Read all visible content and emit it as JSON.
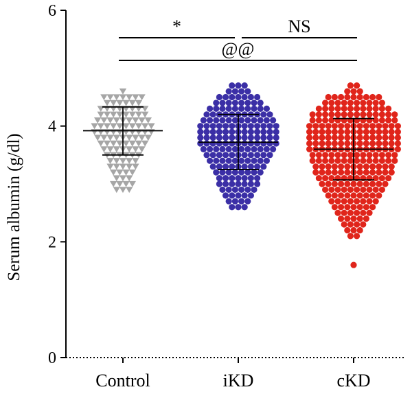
{
  "chart_data": {
    "type": "scatter",
    "ylabel": "Serum albumin (g/dl)",
    "xlabel": "",
    "title": "",
    "ylim": [
      0,
      6
    ],
    "yticks": [
      0,
      2,
      4,
      6
    ],
    "categories": [
      "Control",
      "iKD",
      "cKD"
    ],
    "groups": [
      {
        "name": "Control",
        "marker": "triangle-down",
        "color": "#a6a6a6",
        "mean": 3.92,
        "sd_low": 3.5,
        "sd_high": 4.33,
        "rows": [
          {
            "value": 4.6,
            "count": 1
          },
          {
            "value": 4.5,
            "count": 7
          },
          {
            "value": 4.4,
            "count": 6
          },
          {
            "value": 4.3,
            "count": 8
          },
          {
            "value": 4.2,
            "count": 8
          },
          {
            "value": 4.1,
            "count": 9
          },
          {
            "value": 4.0,
            "count": 10
          },
          {
            "value": 3.9,
            "count": 10
          },
          {
            "value": 3.8,
            "count": 9
          },
          {
            "value": 3.7,
            "count": 8
          },
          {
            "value": 3.6,
            "count": 7
          },
          {
            "value": 3.5,
            "count": 6
          },
          {
            "value": 3.4,
            "count": 5
          },
          {
            "value": 3.3,
            "count": 5
          },
          {
            "value": 3.2,
            "count": 4
          },
          {
            "value": 3.1,
            "count": 3
          },
          {
            "value": 3.0,
            "count": 4
          },
          {
            "value": 2.9,
            "count": 3
          }
        ]
      },
      {
        "name": "iKD",
        "marker": "circle",
        "color": "#3b2fa6",
        "mean": 3.72,
        "sd_low": 3.25,
        "sd_high": 4.2,
        "rows": [
          {
            "value": 4.7,
            "count": 3
          },
          {
            "value": 4.6,
            "count": 4
          },
          {
            "value": 4.5,
            "count": 7
          },
          {
            "value": 4.4,
            "count": 8
          },
          {
            "value": 4.3,
            "count": 10
          },
          {
            "value": 4.2,
            "count": 11
          },
          {
            "value": 4.1,
            "count": 12
          },
          {
            "value": 4.0,
            "count": 13
          },
          {
            "value": 3.9,
            "count": 13
          },
          {
            "value": 3.8,
            "count": 13
          },
          {
            "value": 3.7,
            "count": 13
          },
          {
            "value": 3.6,
            "count": 12
          },
          {
            "value": 3.5,
            "count": 11
          },
          {
            "value": 3.4,
            "count": 10
          },
          {
            "value": 3.3,
            "count": 9
          },
          {
            "value": 3.2,
            "count": 8
          },
          {
            "value": 3.1,
            "count": 7
          },
          {
            "value": 3.0,
            "count": 7
          },
          {
            "value": 2.9,
            "count": 6
          },
          {
            "value": 2.8,
            "count": 5
          },
          {
            "value": 2.7,
            "count": 4
          },
          {
            "value": 2.6,
            "count": 3
          }
        ]
      },
      {
        "name": "cKD",
        "marker": "circle",
        "color": "#e0251b",
        "mean": 3.6,
        "sd_low": 3.07,
        "sd_high": 4.13,
        "rows": [
          {
            "value": 4.7,
            "count": 2
          },
          {
            "value": 4.6,
            "count": 3
          },
          {
            "value": 4.5,
            "count": 9
          },
          {
            "value": 4.4,
            "count": 10
          },
          {
            "value": 4.3,
            "count": 12
          },
          {
            "value": 4.2,
            "count": 14
          },
          {
            "value": 4.1,
            "count": 14
          },
          {
            "value": 4.0,
            "count": 15
          },
          {
            "value": 3.9,
            "count": 15
          },
          {
            "value": 3.8,
            "count": 15
          },
          {
            "value": 3.7,
            "count": 15
          },
          {
            "value": 3.6,
            "count": 15
          },
          {
            "value": 3.5,
            "count": 14
          },
          {
            "value": 3.4,
            "count": 14
          },
          {
            "value": 3.3,
            "count": 13
          },
          {
            "value": 3.2,
            "count": 13
          },
          {
            "value": 3.1,
            "count": 12
          },
          {
            "value": 3.0,
            "count": 11
          },
          {
            "value": 2.9,
            "count": 10
          },
          {
            "value": 2.8,
            "count": 9
          },
          {
            "value": 2.7,
            "count": 8
          },
          {
            "value": 2.6,
            "count": 7
          },
          {
            "value": 2.5,
            "count": 6
          },
          {
            "value": 2.4,
            "count": 5
          },
          {
            "value": 2.3,
            "count": 4
          },
          {
            "value": 2.2,
            "count": 3
          },
          {
            "value": 2.1,
            "count": 2
          },
          {
            "value": 1.6,
            "count": 1
          }
        ]
      }
    ],
    "comparisons": [
      {
        "label": "*",
        "from": "Control",
        "to": "iKD",
        "tier": 1
      },
      {
        "label": "NS",
        "from": "iKD",
        "to": "cKD",
        "tier": 1
      },
      {
        "label": "@@",
        "from": "Control",
        "to": "cKD",
        "tier": 2
      }
    ]
  }
}
